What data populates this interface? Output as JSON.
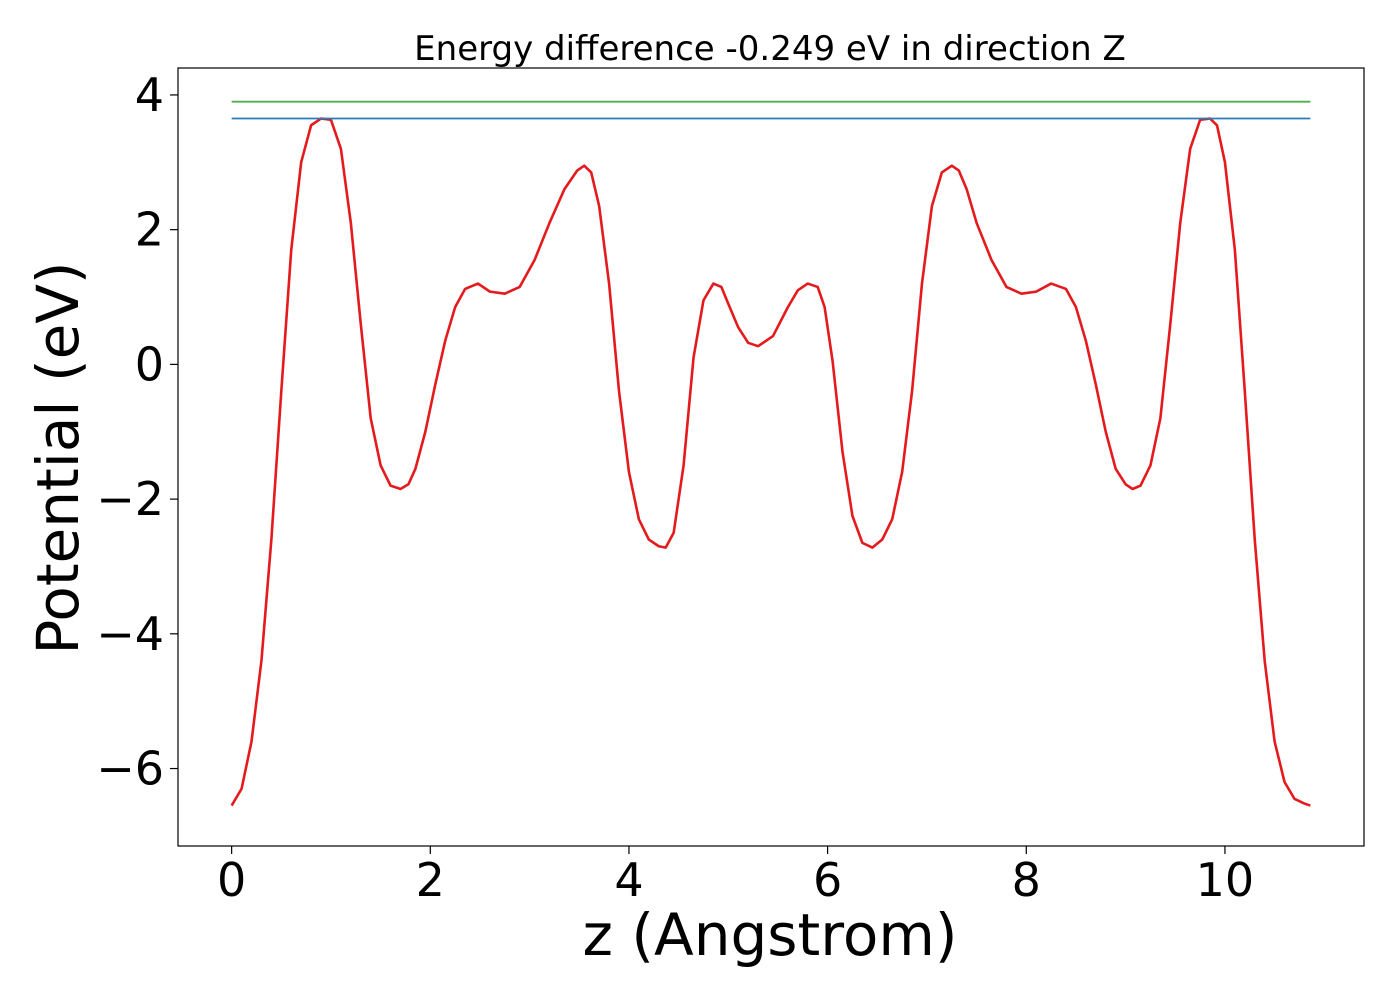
{
  "chart_data": {
    "type": "line",
    "title": "Energy difference -0.249 eV in direction Z",
    "xlabel": "z (Angstrom)",
    "ylabel": "Potential (eV)",
    "xlim": [
      -0.54,
      11.4
    ],
    "ylim": [
      -7.15,
      4.4
    ],
    "xticks": [
      0,
      2,
      4,
      6,
      8,
      10
    ],
    "yticks": [
      4,
      2,
      0,
      -2,
      -4,
      -6
    ],
    "grid": false,
    "series": [
      {
        "color": "#e41a1c",
        "x": [
          0,
          0.1,
          0.2,
          0.3,
          0.4,
          0.5,
          0.6,
          0.7,
          0.8,
          0.9,
          1.0,
          1.1,
          1.2,
          1.3,
          1.4,
          1.5,
          1.6,
          1.7,
          1.78,
          1.85,
          1.95,
          2.05,
          2.15,
          2.25,
          2.35,
          2.48,
          2.6,
          2.75,
          2.9,
          3.05,
          3.2,
          3.35,
          3.48,
          3.55,
          3.62,
          3.7,
          3.8,
          3.9,
          4.0,
          4.1,
          4.2,
          4.3,
          4.37,
          4.45,
          4.55,
          4.65,
          4.75,
          4.85,
          4.93,
          5.0,
          5.1,
          5.2,
          5.3,
          5.45,
          5.6,
          5.7,
          5.8,
          5.9,
          5.97,
          6.05,
          6.15,
          6.25,
          6.35,
          6.45,
          6.55,
          6.65,
          6.75,
          6.85,
          6.95,
          7.05,
          7.15,
          7.25,
          7.32,
          7.4,
          7.5,
          7.65,
          7.8,
          7.95,
          8.1,
          8.25,
          8.4,
          8.5,
          8.6,
          8.7,
          8.8,
          8.9,
          9.0,
          9.07,
          9.15,
          9.25,
          9.35,
          9.45,
          9.55,
          9.65,
          9.75,
          9.85,
          9.92,
          10.0,
          10.1,
          10.2,
          10.3,
          10.4,
          10.5,
          10.6,
          10.7,
          10.8,
          10.86
        ],
        "y": [
          -6.55,
          -6.3,
          -5.6,
          -4.4,
          -2.6,
          -0.4,
          1.7,
          3.0,
          3.55,
          3.65,
          3.63,
          3.2,
          2.1,
          0.6,
          -0.8,
          -1.5,
          -1.8,
          -1.85,
          -1.78,
          -1.55,
          -1.0,
          -0.3,
          0.35,
          0.85,
          1.12,
          1.2,
          1.08,
          1.05,
          1.15,
          1.55,
          2.1,
          2.6,
          2.88,
          2.95,
          2.85,
          2.35,
          1.2,
          -0.4,
          -1.6,
          -2.3,
          -2.6,
          -2.7,
          -2.72,
          -2.5,
          -1.5,
          0.1,
          0.95,
          1.2,
          1.15,
          0.9,
          0.55,
          0.32,
          0.27,
          0.42,
          0.85,
          1.1,
          1.2,
          1.15,
          0.85,
          0.05,
          -1.3,
          -2.25,
          -2.65,
          -2.72,
          -2.6,
          -2.3,
          -1.6,
          -0.4,
          1.2,
          2.35,
          2.85,
          2.95,
          2.88,
          2.6,
          2.1,
          1.55,
          1.15,
          1.05,
          1.08,
          1.2,
          1.12,
          0.85,
          0.35,
          -0.3,
          -1.0,
          -1.55,
          -1.78,
          -1.85,
          -1.8,
          -1.5,
          -0.8,
          0.6,
          2.1,
          3.2,
          3.63,
          3.65,
          3.55,
          3.0,
          1.7,
          -0.4,
          -2.6,
          -4.4,
          -5.6,
          -6.2,
          -6.45,
          -6.52,
          -6.55
        ]
      },
      {
        "color": "#2a7dbd",
        "x": [
          0,
          10.86
        ],
        "y": [
          3.65,
          3.65
        ]
      },
      {
        "color": "#4daf4a",
        "x": [
          0,
          10.86
        ],
        "y": [
          3.9,
          3.9
        ]
      }
    ]
  }
}
